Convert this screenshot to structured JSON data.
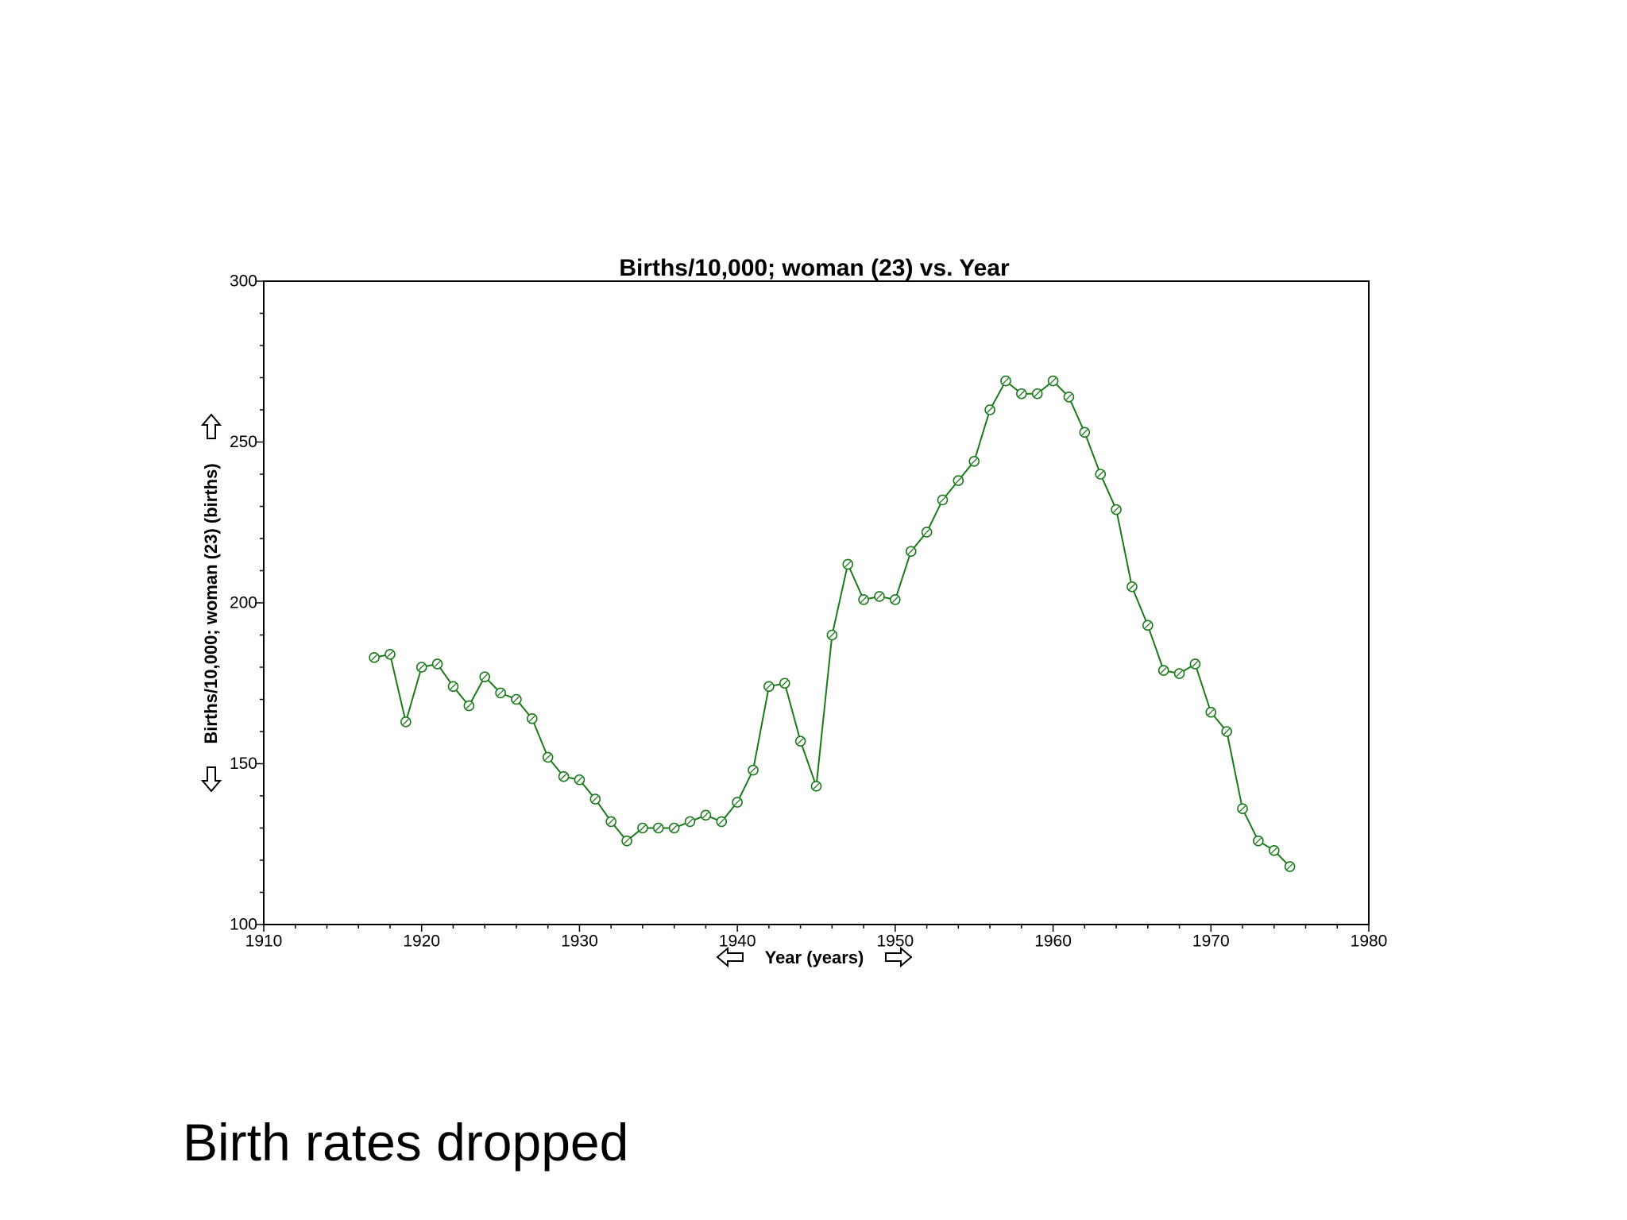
{
  "caption": "Birth rates dropped",
  "chart_data": {
    "type": "line",
    "title": "Births/10,000; woman (23) vs. Year",
    "xlabel": "Year (years)",
    "ylabel": "Births/10,000; woman (23) (births)",
    "xlim": [
      1910,
      1980
    ],
    "ylim": [
      100,
      300
    ],
    "x_ticks": [
      1910,
      1920,
      1930,
      1940,
      1950,
      1960,
      1970,
      1980
    ],
    "y_ticks": [
      100,
      150,
      200,
      250,
      300
    ],
    "line_color": "#1a7a1a",
    "grid": false,
    "series": [
      {
        "x": [
          1917,
          1918,
          1919,
          1920,
          1921,
          1922,
          1923,
          1924,
          1925,
          1926,
          1927,
          1928,
          1929,
          1930,
          1931,
          1932,
          1933,
          1934,
          1935,
          1936,
          1937,
          1938,
          1939,
          1940,
          1941,
          1942,
          1943,
          1944,
          1945,
          1946,
          1947,
          1948,
          1949,
          1950,
          1951,
          1952,
          1953,
          1954,
          1955,
          1956,
          1957,
          1958,
          1959,
          1960,
          1961,
          1962,
          1963,
          1964,
          1965,
          1966,
          1967,
          1968,
          1969,
          1970,
          1971,
          1972,
          1973,
          1974,
          1975
        ],
        "values": [
          183,
          184,
          163,
          180,
          181,
          174,
          168,
          177,
          172,
          170,
          164,
          152,
          146,
          145,
          139,
          132,
          126,
          130,
          130,
          130,
          132,
          134,
          132,
          138,
          148,
          174,
          175,
          157,
          143,
          190,
          212,
          201,
          202,
          201,
          216,
          222,
          232,
          238,
          244,
          260,
          269,
          265,
          265,
          269,
          264,
          253,
          240,
          229,
          205,
          193,
          179,
          178,
          181,
          166,
          160,
          136,
          126,
          123,
          118
        ]
      }
    ]
  }
}
